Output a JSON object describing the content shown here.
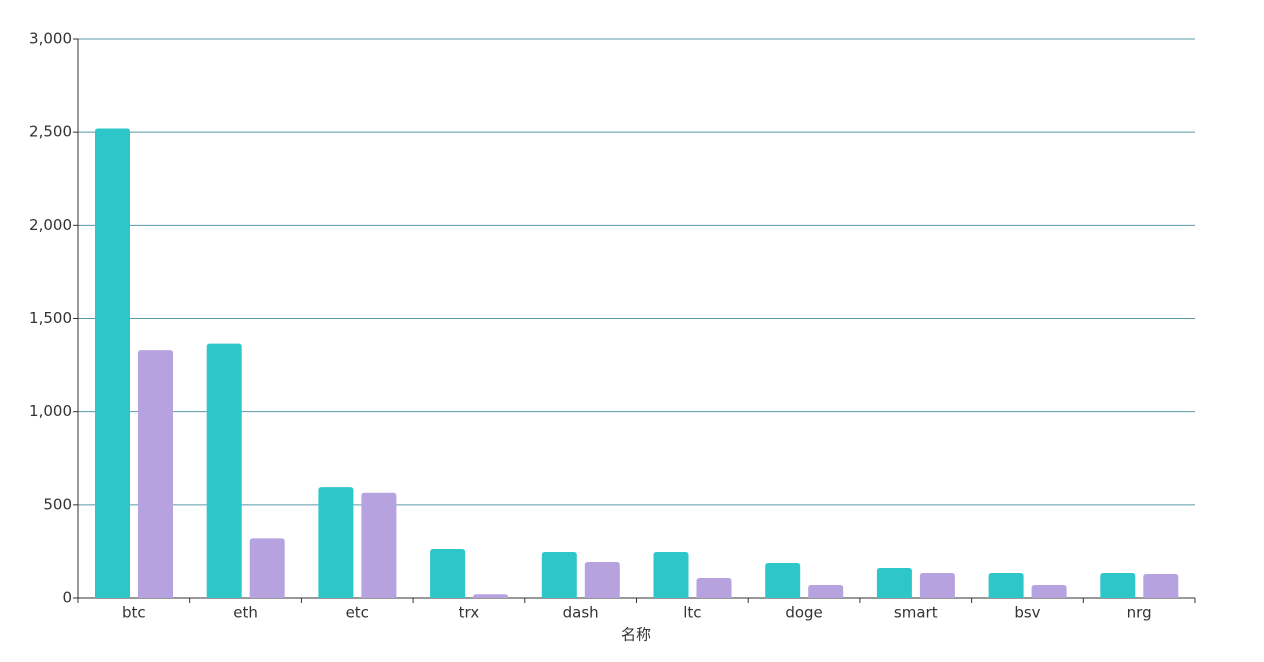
{
  "chart_data": {
    "type": "bar",
    "x_label": "名称",
    "categories": [
      "btc",
      "eth",
      "etc",
      "trx",
      "dash",
      "ltc",
      "doge",
      "smart",
      "bsv",
      "nrg"
    ],
    "series": [
      {
        "color": "#2ec7c9",
        "values": [
          2520,
          1365,
          595,
          263,
          247,
          247,
          188,
          161,
          134,
          134
        ]
      },
      {
        "color": "#b6a2de",
        "values": [
          1330,
          320,
          565,
          20,
          193,
          107,
          70,
          134,
          70,
          129
        ]
      }
    ],
    "ylim": [
      0,
      3000
    ],
    "yticks": [
      0,
      500,
      {
        "value": 1000,
        "label": "1,000"
      },
      {
        "value": 1500,
        "label": "1,500"
      },
      {
        "value": 2000,
        "label": "2,000"
      },
      {
        "value": 2500,
        "label": "2,500"
      },
      {
        "value": 3000,
        "label": "3,000"
      }
    ],
    "grid": true
  }
}
